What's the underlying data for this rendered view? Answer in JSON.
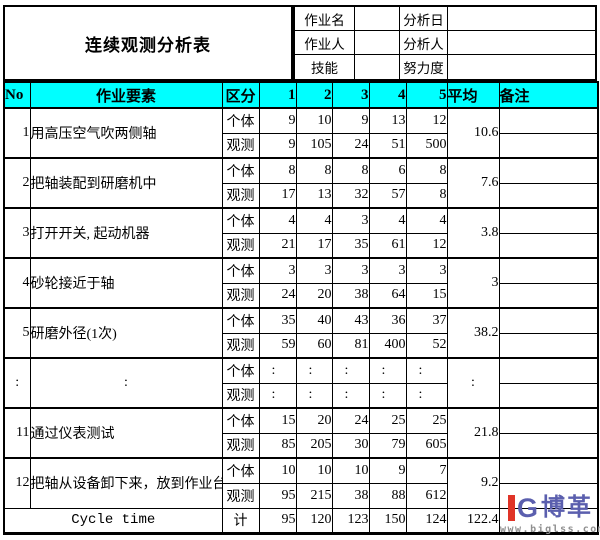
{
  "colors": {
    "header_bg": "#00ffff",
    "grid_line": "#000000",
    "logo_red": "#e03428",
    "logo_blue": "#5b5fae",
    "url_gray": "#8f8f8f"
  },
  "title": "连续观测分析表",
  "info": {
    "job_name_label": "作业名",
    "job_name_value": "",
    "analysis_date_label": "分析日",
    "analysis_date_value": "",
    "operator_label": "作业人",
    "operator_value": "",
    "analyst_label": "分析人",
    "analyst_value": "",
    "skill_label": "技能",
    "skill_value": "",
    "effort_label": "努力度",
    "effort_value": ""
  },
  "columns": {
    "no": "No",
    "element": "作业要素",
    "category": "区分",
    "obs": [
      "1",
      "2",
      "3",
      "4",
      "5"
    ],
    "average": "平均",
    "remark": "备注"
  },
  "row_labels": {
    "individual": "个体",
    "observed": "观测",
    "total": "计"
  },
  "rows": [
    {
      "no": "1",
      "element": "用高压空气吹两侧轴",
      "individual": [
        "9",
        "10",
        "9",
        "13",
        "12"
      ],
      "observed": [
        "9",
        "105",
        "24",
        "51",
        "500"
      ],
      "average": "10.6"
    },
    {
      "no": "2",
      "element": "把轴装配到研磨机中",
      "individual": [
        "8",
        "8",
        "8",
        "6",
        "8"
      ],
      "observed": [
        "17",
        "13",
        "32",
        "57",
        "8"
      ],
      "average": "7.6"
    },
    {
      "no": "3",
      "element": "打开开关, 起动机器",
      "individual": [
        "4",
        "4",
        "3",
        "4",
        "4"
      ],
      "observed": [
        "21",
        "17",
        "35",
        "61",
        "12"
      ],
      "average": "3.8"
    },
    {
      "no": "4",
      "element": "砂轮接近于轴",
      "individual": [
        "3",
        "3",
        "3",
        "3",
        "3"
      ],
      "observed": [
        "24",
        "20",
        "38",
        "64",
        "15"
      ],
      "average": "3"
    },
    {
      "no": "5",
      "element": "研磨外径(1次)",
      "individual": [
        "35",
        "40",
        "43",
        "36",
        "37"
      ],
      "observed": [
        "59",
        "60",
        "81",
        "400",
        "52"
      ],
      "average": "38.2"
    },
    {
      "no": ":",
      "element": ":",
      "individual": [
        ":",
        ":",
        ":",
        ":",
        ":"
      ],
      "observed": [
        ":",
        ":",
        ":",
        ":",
        ":"
      ],
      "average": ":"
    },
    {
      "no": "11",
      "element": "通过仪表测试",
      "individual": [
        "15",
        "20",
        "24",
        "25",
        "25"
      ],
      "observed": [
        "85",
        "205",
        "30",
        "79",
        "605"
      ],
      "average": "21.8"
    },
    {
      "no": "12",
      "element": "把轴从设备卸下来，放到作业台上",
      "individual": [
        "10",
        "10",
        "10",
        "9",
        "7"
      ],
      "observed": [
        "95",
        "215",
        "38",
        "88",
        "612"
      ],
      "average": "9.2"
    }
  ],
  "footer": {
    "label": "Cycle time",
    "category": "计",
    "values": [
      "95",
      "120",
      "123",
      "150",
      "124"
    ],
    "average": "122.4",
    "remark": ""
  },
  "logo": {
    "monogram": "G",
    "text": "博革",
    "url": "www.biglss.com"
  }
}
